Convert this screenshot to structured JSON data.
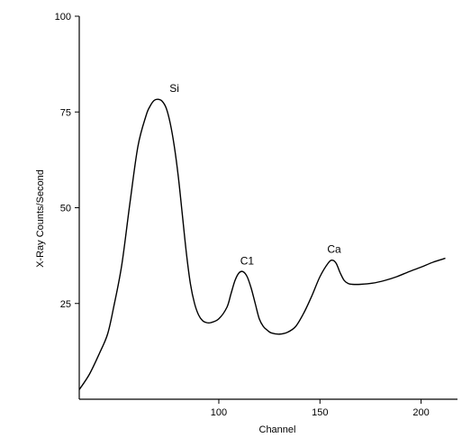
{
  "chart_data": {
    "type": "line",
    "title": "",
    "xlabel": "Channel",
    "ylabel": "X-Ray Counts/Second",
    "xlim": [
      31,
      218
    ],
    "ylim": [
      0,
      100
    ],
    "xticks": [
      100,
      150,
      200
    ],
    "yticks": [
      25,
      50,
      75,
      100
    ],
    "grid": false,
    "legend": "none",
    "line_color": "#000000",
    "series": [
      {
        "x": [
          31,
          36,
          41,
          45,
          48,
          52,
          56,
          60,
          64,
          66,
          68,
          70,
          72,
          74,
          76,
          78,
          80,
          82,
          84,
          86,
          88,
          90,
          92,
          94,
          96,
          100,
          104,
          106,
          108,
          110,
          112,
          114,
          116,
          118,
          120,
          122,
          124,
          126,
          130,
          134,
          138,
          142,
          146,
          150,
          154,
          156,
          158,
          160,
          162,
          164,
          166,
          170,
          176,
          182,
          188,
          194,
          200,
          206,
          212
        ],
        "y": [
          2.5,
          6.5,
          12,
          17,
          24,
          35,
          51,
          66,
          74,
          76.5,
          78,
          78.3,
          77.8,
          76,
          72,
          66,
          58,
          48,
          38,
          30,
          25,
          22,
          20.5,
          20,
          20,
          21,
          24,
          27.5,
          31,
          33,
          33.3,
          32,
          29,
          25,
          21,
          19,
          18,
          17.3,
          17,
          17.5,
          19,
          22.5,
          27,
          32,
          35.5,
          36.3,
          35.5,
          33,
          31,
          30.2,
          30,
          30,
          30.3,
          31,
          32,
          33.3,
          34.5,
          35.8,
          36.8
        ]
      }
    ],
    "annotations": [
      {
        "text": "Si",
        "x": 78,
        "y": 78.3
      },
      {
        "text": "C1",
        "x": 114,
        "y": 33.3
      },
      {
        "text": "Ca",
        "x": 157,
        "y": 36.3
      }
    ]
  }
}
